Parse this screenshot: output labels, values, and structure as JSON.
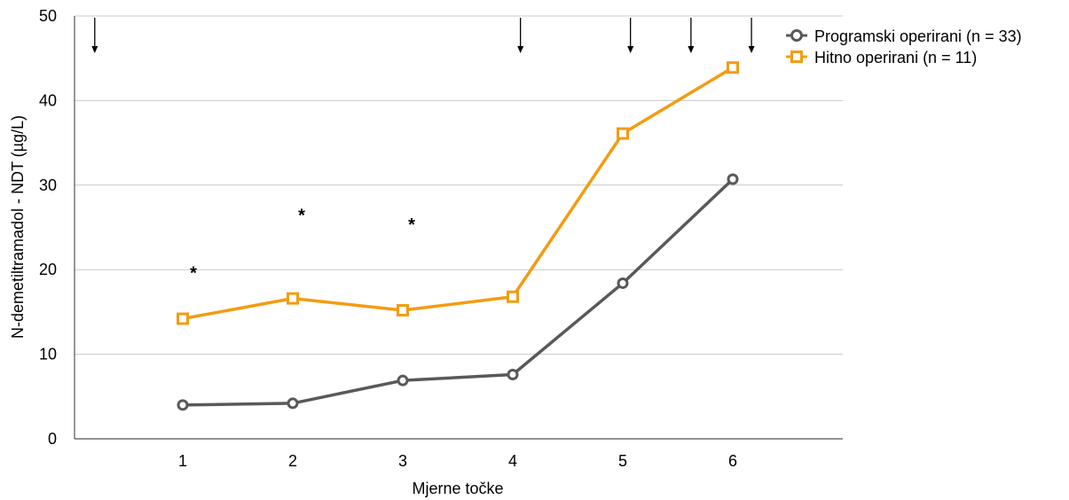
{
  "chart_data": {
    "type": "line",
    "xlabel": "Mjerne točke",
    "ylabel": "N-demetiltramadol - NDT (µg/L)",
    "categories": [
      "1",
      "2",
      "3",
      "4",
      "5",
      "6"
    ],
    "yticks": [
      "0",
      "10",
      "20",
      "30",
      "40",
      "50"
    ],
    "ylim": [
      0,
      50
    ],
    "grid": true,
    "legend_position": "top-right",
    "series": [
      {
        "name": "Programski operirani (n = 33)",
        "values": [
          4.0,
          4.2,
          6.9,
          7.6,
          18.4,
          30.7
        ],
        "color": "#595959",
        "marker": "circle"
      },
      {
        "name": "Hitno operirani (n = 11)",
        "values": [
          14.2,
          16.6,
          15.2,
          16.8,
          36.1,
          43.9
        ],
        "color": "#f39c12",
        "marker": "square"
      }
    ],
    "annotations": {
      "significance_marker": "*",
      "significant_points": [
        1,
        2,
        3
      ],
      "arrow_positions_x": [
        0.2,
        4.07,
        5.07,
        5.62,
        6.17
      ]
    }
  }
}
